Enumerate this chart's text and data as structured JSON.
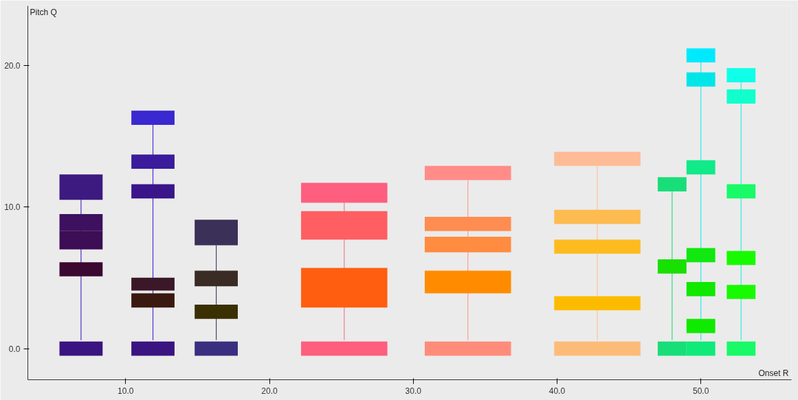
{
  "chart_data": {
    "type": "bar",
    "xlabel": "Onset R",
    "ylabel": "Pitch Q",
    "xlim": [
      3.2,
      56.3
    ],
    "ylim": [
      -2.2,
      24.2
    ],
    "xticks": [
      {
        "value": 10,
        "label": "10.0"
      },
      {
        "value": 20,
        "label": "20.0"
      },
      {
        "value": 30,
        "label": "30.0"
      },
      {
        "value": 40,
        "label": "40.0"
      },
      {
        "value": 50,
        "label": "50.0"
      }
    ],
    "yticks": [
      {
        "value": 0,
        "label": "0.0"
      },
      {
        "value": 10,
        "label": "10.0"
      },
      {
        "value": 20,
        "label": "20.0"
      }
    ],
    "grid": false,
    "series": [
      {
        "type": "line",
        "x": [
          6.9,
          6.9
        ],
        "values": [
          0.6,
          10.5
        ],
        "color": "#4a30c0"
      },
      {
        "type": "line",
        "x": [
          11.9,
          11.9
        ],
        "values": [
          0.6,
          15.8
        ],
        "color": "#4a30e0"
      },
      {
        "type": "line",
        "x": [
          16.3,
          16.3
        ],
        "values": [
          0.6,
          7.3
        ],
        "color": "#4a4070"
      },
      {
        "type": "line",
        "x": [
          25.2,
          25.2
        ],
        "values": [
          0.6,
          10.3
        ],
        "color": "#f08090"
      },
      {
        "type": "line",
        "x": [
          33.8,
          33.8
        ],
        "values": [
          0.6,
          11.9
        ],
        "color": "#ff9a90"
      },
      {
        "type": "line",
        "x": [
          42.8,
          42.8
        ],
        "values": [
          0.6,
          12.9
        ],
        "color": "#fdc0a0"
      },
      {
        "type": "line",
        "x": [
          48.0,
          48.0
        ],
        "values": [
          0.6,
          11.1
        ],
        "color": "#30e080"
      },
      {
        "type": "line",
        "x": [
          50.0,
          50.0
        ],
        "values": [
          0.6,
          20.2
        ],
        "color": "#30e8f0"
      },
      {
        "type": "line",
        "x": [
          52.8,
          52.8
        ],
        "values": [
          0.6,
          18.8
        ],
        "color": "#30f0e8"
      },
      {
        "x": [
          6.9,
          11.9,
          16.3,
          25.2,
          33.8,
          42.8,
          48.0,
          50.0,
          52.8
        ],
        "base": [
          -0.5,
          -0.5,
          -0.5,
          -0.5,
          -0.5,
          -0.5,
          -0.5,
          -0.5,
          -0.5
        ],
        "values": [
          1.0,
          1.0,
          1.0,
          1.0,
          1.0,
          1.0,
          1.0,
          1.0,
          1.0
        ],
        "colors": [
          "#3a1480",
          "#3a1480",
          "#3a2e80",
          "#ff5e7e",
          "#ff8c7a",
          "#fdbb78",
          "#18de78",
          "#10ea78",
          "#18fa68"
        ]
      },
      {
        "x": [
          6.9,
          11.9,
          16.3,
          25.2,
          33.8,
          42.8,
          48.0,
          50.0,
          52.8
        ],
        "base": [
          5.1,
          2.9,
          2.1,
          2.9,
          3.9,
          2.7,
          5.3,
          1.1,
          3.5
        ],
        "values": [
          1.0,
          1.0,
          1.0,
          2.8,
          1.6,
          1.0,
          1.0,
          1.0,
          1.0
        ],
        "colors": [
          "#3a0830",
          "#3a1a10",
          "#3a3004",
          "#ff5e10",
          "#ff8c00",
          "#fdbb00",
          "#18e000",
          "#10ea00",
          "#18fa00"
        ]
      },
      {
        "x": [
          6.9,
          11.9,
          16.3,
          25.2,
          33.8,
          42.8,
          48.0,
          50.0,
          52.8
        ],
        "base": [
          7.0,
          4.1,
          4.4,
          7.7,
          6.8,
          6.7,
          11.1,
          3.7,
          5.9
        ],
        "values": [
          1.3,
          0.9,
          1.1,
          2.0,
          1.1,
          1.0,
          1.0,
          1.0,
          1.0
        ],
        "colors": [
          "#3d0d55",
          "#3a1828",
          "#3a2c24",
          "#ff5e62",
          "#ff8c40",
          "#fdbb20",
          "#18de78",
          "#10e800",
          "#18fa00"
        ]
      },
      {
        "x": [
          6.9,
          11.9,
          16.3,
          25.2,
          33.8,
          42.8,
          50.0,
          52.8
        ],
        "base": [
          8.3,
          10.6,
          7.3,
          10.3,
          8.3,
          8.8,
          6.1,
          10.6
        ],
        "values": [
          1.2,
          1.0,
          1.8,
          1.4,
          1.0,
          1.0,
          1.0,
          1.0
        ],
        "colors": [
          "#3d1060",
          "#3a168a",
          "#3a3058",
          "#ff5e7e",
          "#ff8c50",
          "#fdbb50",
          "#10e810",
          "#18fa68"
        ]
      },
      {
        "x": [
          6.9,
          11.9,
          33.8,
          42.8,
          50.0,
          52.8
        ],
        "base": [
          10.5,
          12.7,
          11.9,
          12.9,
          12.3,
          17.3
        ],
        "values": [
          1.8,
          1.0,
          1.0,
          1.0,
          1.0,
          1.0
        ],
        "colors": [
          "#3d1a80",
          "#3a1c9c",
          "#ff8c88",
          "#fdbb96",
          "#10ea88",
          "#10ffcc"
        ]
      },
      {
        "x": [
          11.9,
          50.0,
          52.8
        ],
        "base": [
          15.8,
          18.5,
          18.8
        ],
        "values": [
          1.0,
          1.0,
          1.0
        ],
        "colors": [
          "#3a28d0",
          "#00e6e8",
          "#10ffe8"
        ]
      },
      {
        "x": [
          50.0
        ],
        "base": [
          20.2
        ],
        "values": [
          1.0
        ],
        "colors": [
          "#00eaff"
        ]
      }
    ]
  }
}
